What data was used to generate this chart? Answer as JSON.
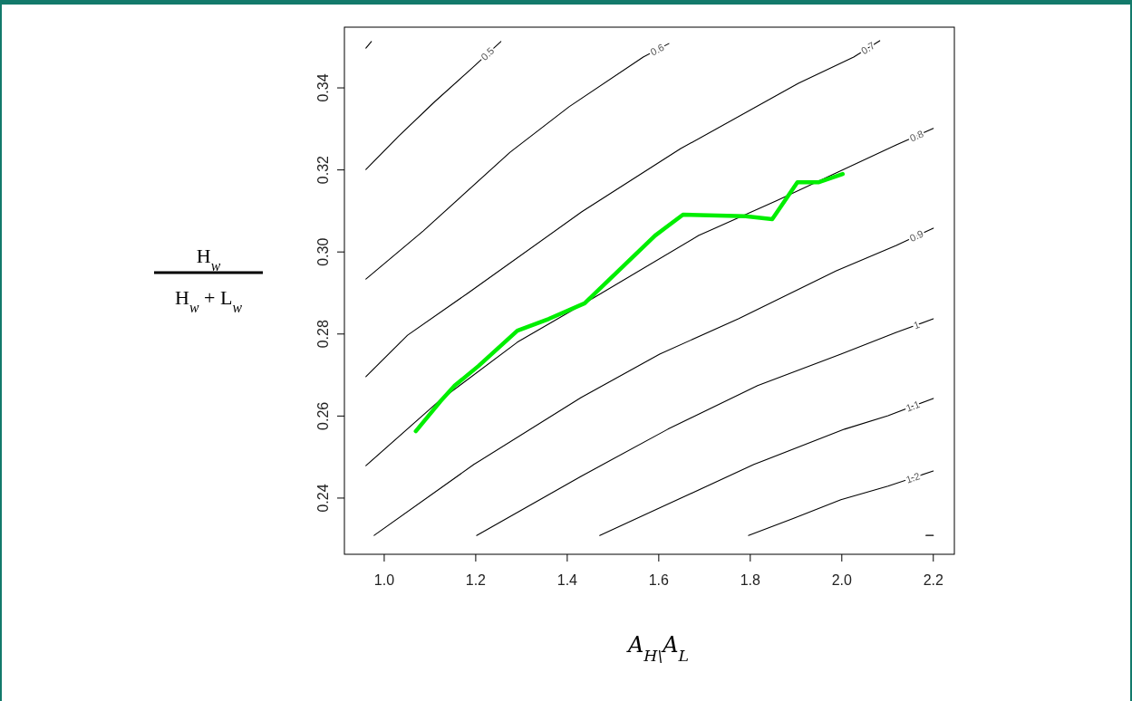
{
  "chart_data": {
    "type": "line",
    "xlabel": "A$_{H\\}$A$_{L}$",
    "ylabel": "H$_{w}$\nH$_{w}$ + L$_{w}$",
    "xlim": [
      0.913,
      2.246
    ],
    "ylim": [
      0.2263,
      0.3548
    ],
    "xticks": [
      {
        "value": 1.0,
        "label": "1.0"
      },
      {
        "value": 1.2,
        "label": "1.2"
      },
      {
        "value": 1.4,
        "label": "1.4"
      },
      {
        "value": 1.6,
        "label": "1.6"
      },
      {
        "value": 1.8,
        "label": "1.8"
      },
      {
        "value": 2.0,
        "label": "2.0"
      },
      {
        "value": 2.2,
        "label": "2.2"
      }
    ],
    "yticks": [
      {
        "value": 0.24,
        "label": "0.24"
      },
      {
        "value": 0.26,
        "label": "0.26"
      },
      {
        "value": 0.28,
        "label": "0.28"
      },
      {
        "value": 0.3,
        "label": "0.30"
      },
      {
        "value": 0.32,
        "label": "0.32"
      },
      {
        "value": 0.34,
        "label": "0.34"
      }
    ],
    "series": [
      {
        "color": "#000000",
        "x": [
          0.96,
          0.972
        ],
        "values": [
          0.3497,
          0.3513
        ]
      },
      {
        "name": "0.5",
        "color": "#000000",
        "x": [
          0.96,
          1.032,
          1.111,
          1.19,
          1.255
        ],
        "values": [
          0.3201,
          0.3283,
          0.3367,
          0.3446,
          0.3513
        ]
      },
      {
        "name": "0.6",
        "color": "#000000",
        "x": [
          0.96,
          1.085,
          1.275,
          1.404,
          1.566,
          1.622
        ],
        "values": [
          0.2934,
          0.3051,
          0.3243,
          0.3354,
          0.3475,
          0.3508
        ]
      },
      {
        "name": "0.7",
        "color": "#000000",
        "x": [
          0.96,
          1.051,
          1.182,
          1.432,
          1.648,
          1.905,
          2.026,
          2.083
        ],
        "values": [
          0.2696,
          0.2797,
          0.2899,
          0.3098,
          0.3252,
          0.3411,
          0.3475,
          0.3515
        ]
      },
      {
        "name": "0.8",
        "color": "#000000",
        "x": [
          0.96,
          1.119,
          1.291,
          1.438,
          1.687,
          1.859,
          2.119,
          2.2
        ],
        "values": [
          0.2479,
          0.2636,
          0.278,
          0.2875,
          0.304,
          0.3126,
          0.3261,
          0.3301
        ]
      },
      {
        "name": "0.9",
        "color": "#000000",
        "x": [
          0.978,
          1.196,
          1.43,
          1.602,
          1.774,
          1.988,
          2.119,
          2.2
        ],
        "values": [
          0.2309,
          0.2482,
          0.2645,
          0.2751,
          0.2837,
          0.2954,
          0.3016,
          0.3058
        ]
      },
      {
        "name": "1",
        "color": "#000000",
        "x": [
          1.202,
          1.43,
          1.62,
          1.816,
          1.998,
          2.119,
          2.2
        ],
        "values": [
          0.2309,
          0.2453,
          0.2568,
          0.2674,
          0.2751,
          0.2804,
          0.2837
        ]
      },
      {
        "name": "1.1",
        "color": "#000000",
        "x": [
          1.471,
          1.602,
          1.808,
          2.006,
          2.101,
          2.2
        ],
        "values": [
          0.2309,
          0.2376,
          0.2482,
          0.2568,
          0.2601,
          0.2643
        ]
      },
      {
        "name": "1.2",
        "color": "#000000",
        "x": [
          1.796,
          1.895,
          1.998,
          2.101,
          2.2
        ],
        "values": [
          0.2309,
          0.2351,
          0.2396,
          0.2429,
          0.2466
        ]
      },
      {
        "color": "#000000",
        "x": [
          2.184,
          2.2
        ],
        "values": [
          0.2309,
          0.2309
        ]
      },
      {
        "color": "#00ee00",
        "x": [
          1.069,
          1.123,
          1.154,
          1.206,
          1.291,
          1.36,
          1.438,
          1.592,
          1.653,
          1.79,
          1.848,
          1.903,
          1.95,
          2.002
        ],
        "values": [
          0.2563,
          0.2636,
          0.2674,
          0.2722,
          0.2808,
          0.2837,
          0.2875,
          0.304,
          0.3091,
          0.3087,
          0.308,
          0.317,
          0.317,
          0.319
        ]
      }
    ]
  }
}
